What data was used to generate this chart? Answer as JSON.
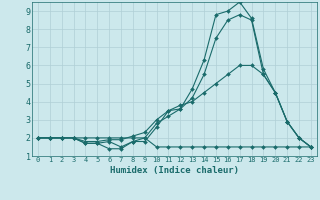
{
  "title": "",
  "xlabel": "Humidex (Indice chaleur)",
  "xlim": [
    -0.5,
    23.5
  ],
  "ylim": [
    1,
    9.5
  ],
  "yticks": [
    1,
    2,
    3,
    4,
    5,
    6,
    7,
    8,
    9
  ],
  "xticks": [
    0,
    1,
    2,
    3,
    4,
    5,
    6,
    7,
    8,
    9,
    10,
    11,
    12,
    13,
    14,
    15,
    16,
    17,
    18,
    19,
    20,
    21,
    22,
    23
  ],
  "bg_color": "#cce8ec",
  "grid_color": "#b0cfd6",
  "line_color": "#1a6b6b",
  "lines": [
    {
      "x": [
        0,
        1,
        2,
        3,
        4,
        5,
        6,
        7,
        8,
        9,
        10,
        11,
        12,
        13,
        14,
        15,
        16,
        17,
        18,
        19,
        20,
        21,
        22,
        23
      ],
      "y": [
        2,
        2,
        2,
        2,
        1.7,
        1.7,
        1.4,
        1.4,
        1.8,
        1.8,
        2.6,
        3.5,
        3.6,
        4.7,
        6.3,
        8.8,
        9.0,
        9.5,
        8.6,
        5.8,
        4.5,
        2.9,
        2.0,
        1.5
      ]
    },
    {
      "x": [
        0,
        1,
        2,
        3,
        4,
        5,
        6,
        7,
        8,
        9,
        10,
        11,
        12,
        13,
        14,
        15,
        16,
        17,
        18,
        19,
        20,
        21,
        22,
        23
      ],
      "y": [
        2,
        2,
        2,
        2,
        1.7,
        1.7,
        1.8,
        1.5,
        1.8,
        2.0,
        2.8,
        3.2,
        3.6,
        4.2,
        5.5,
        7.5,
        8.5,
        8.8,
        8.5,
        5.5,
        4.5,
        2.9,
        2.0,
        1.5
      ]
    },
    {
      "x": [
        0,
        1,
        2,
        3,
        4,
        5,
        6,
        7,
        8,
        9,
        10,
        11,
        12,
        13,
        14,
        15,
        16,
        17,
        18,
        19,
        20,
        21,
        22,
        23
      ],
      "y": [
        2,
        2,
        2,
        2,
        1.8,
        1.8,
        1.9,
        1.9,
        2.1,
        2.3,
        3.0,
        3.5,
        3.8,
        4.0,
        4.5,
        5.0,
        5.5,
        6.0,
        6.0,
        5.5,
        4.5,
        2.9,
        2.0,
        1.5
      ]
    },
    {
      "x": [
        0,
        1,
        2,
        3,
        4,
        5,
        6,
        7,
        8,
        9,
        10,
        11,
        12,
        13,
        14,
        15,
        16,
        17,
        18,
        19,
        20,
        21,
        22,
        23
      ],
      "y": [
        2,
        2,
        2,
        2,
        2,
        2,
        2,
        2,
        2,
        2,
        1.5,
        1.5,
        1.5,
        1.5,
        1.5,
        1.5,
        1.5,
        1.5,
        1.5,
        1.5,
        1.5,
        1.5,
        1.5,
        1.5
      ]
    }
  ]
}
